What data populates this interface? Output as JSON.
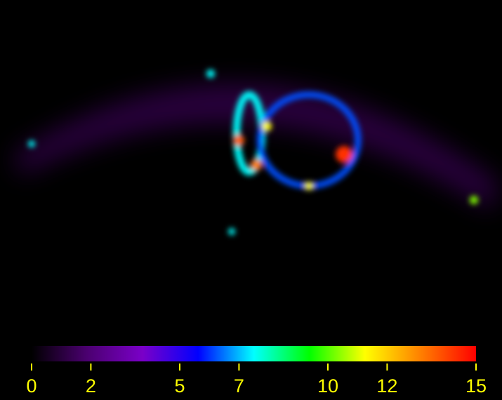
{
  "chart_data": {
    "type": "colorbar",
    "xlim": [
      0,
      15
    ],
    "xticks": [
      0,
      2,
      5,
      7,
      10,
      12,
      15
    ],
    "colors": [
      "#000000",
      "#4b0070",
      "#7a00c8",
      "#0000ff",
      "#00ffff",
      "#00ff00",
      "#ffff00",
      "#ff8000",
      "#ff0000"
    ],
    "tick_color": "#ffff00"
  }
}
